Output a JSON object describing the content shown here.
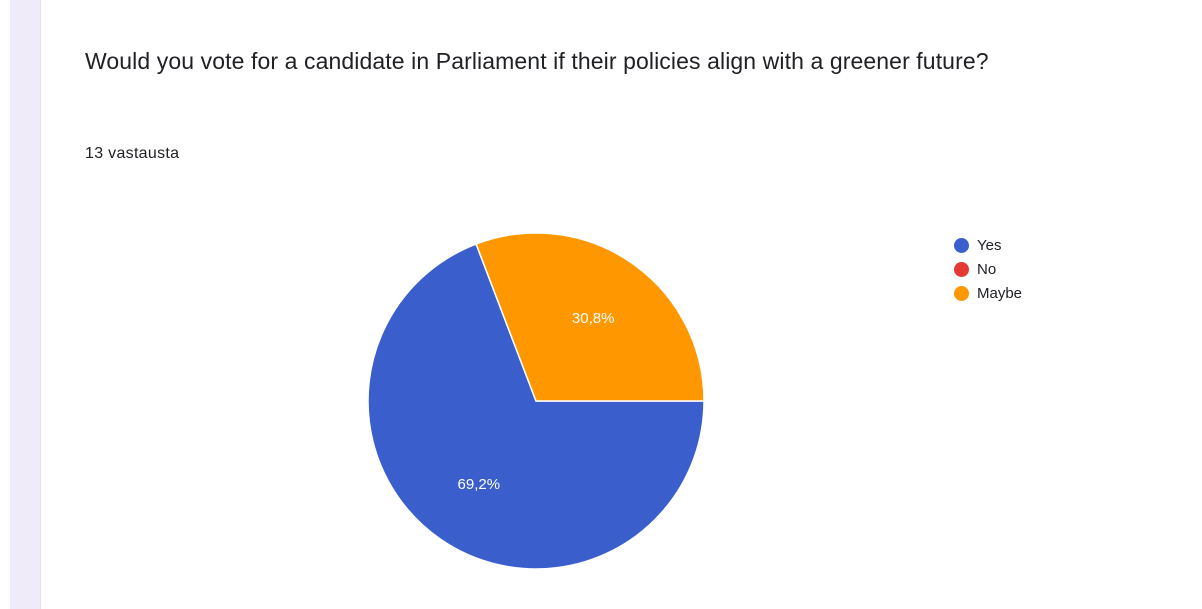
{
  "question": {
    "title": "Would you vote for a candidate in Parliament if their policies align with a greener future?",
    "response_count": "13 vastausta"
  },
  "chart_data": {
    "type": "pie",
    "categories": [
      "Yes",
      "No",
      "Maybe"
    ],
    "values": [
      69.2,
      0,
      30.8
    ],
    "labels": [
      "69,2%",
      "",
      "30,8%"
    ],
    "colors": [
      "#3a5fcd",
      "#e53935",
      "#ff9800"
    ],
    "legend_position": "right"
  }
}
